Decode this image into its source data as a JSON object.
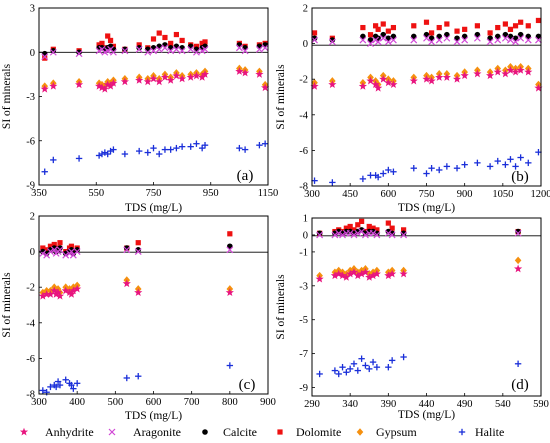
{
  "colors": {
    "Anhydrite": "#e8157f",
    "Aragonite": "#d147d6",
    "Calcite": "#000000",
    "Dolomite": "#ee1111",
    "Gypsum": "#f5900f",
    "Halite": "#1a2fd9"
  },
  "legend": [
    {
      "label": "Anhydrite",
      "marker": "star"
    },
    {
      "label": "Aragonite",
      "marker": "x"
    },
    {
      "label": "Calcite",
      "marker": "circle"
    },
    {
      "label": "Dolomite",
      "marker": "square"
    },
    {
      "label": "Gypsum",
      "marker": "diamond"
    },
    {
      "label": "Halite",
      "marker": "plus"
    }
  ],
  "chart_data": [
    {
      "type": "scatter",
      "panel_label": "(a)",
      "xlabel": "TDS (mg/L)",
      "ylabel": "SI of minerals",
      "xlim": [
        350,
        1150
      ],
      "ylim": [
        -9,
        3
      ],
      "xticks": [
        350,
        550,
        750,
        950,
        1150
      ],
      "yticks": [
        -9,
        -6,
        -3,
        0,
        3
      ],
      "x": [
        370,
        400,
        490,
        560,
        570,
        580,
        590,
        600,
        610,
        650,
        700,
        730,
        750,
        770,
        790,
        810,
        830,
        850,
        880,
        900,
        920,
        930,
        1050,
        1070,
        1120,
        1140
      ],
      "series": [
        {
          "name": "Anhydrite",
          "values": [
            -2.5,
            -2.3,
            -2.2,
            -2.3,
            -2.4,
            -2.5,
            -2.2,
            -2.3,
            -2.1,
            -2.0,
            -1.9,
            -2.0,
            -1.8,
            -2.0,
            -1.7,
            -1.9,
            -1.6,
            -1.8,
            -1.7,
            -1.6,
            -1.7,
            -1.5,
            -1.3,
            -1.4,
            -1.5,
            -2.4
          ]
        },
        {
          "name": "Aragonite",
          "values": [
            -0.3,
            0.0,
            -0.1,
            0.1,
            0.2,
            0.0,
            0.1,
            0.2,
            0.0,
            0.1,
            0.2,
            0.0,
            0.1,
            0.2,
            0.3,
            0.1,
            0.2,
            0.1,
            0.2,
            0.0,
            0.1,
            0.2,
            0.3,
            0.1,
            0.2,
            0.3
          ]
        },
        {
          "name": "Calcite",
          "values": [
            -0.1,
            0.1,
            0.0,
            0.3,
            0.3,
            0.2,
            0.3,
            0.4,
            0.2,
            0.2,
            0.3,
            0.2,
            0.3,
            0.4,
            0.5,
            0.3,
            0.4,
            0.3,
            0.4,
            0.2,
            0.3,
            0.4,
            0.5,
            0.3,
            0.4,
            0.5
          ]
        },
        {
          "name": "Dolomite",
          "values": [
            -0.4,
            0.2,
            0.1,
            0.5,
            0.6,
            0.3,
            1.1,
            0.8,
            0.4,
            0.2,
            0.5,
            0.3,
            0.9,
            1.3,
            1.0,
            0.6,
            1.2,
            0.8,
            0.5,
            0.4,
            0.6,
            0.7,
            0.6,
            0.4,
            0.5,
            0.6
          ]
        },
        {
          "name": "Gypsum",
          "values": [
            -2.3,
            -2.1,
            -2.0,
            -2.1,
            -2.2,
            -2.3,
            -2.0,
            -2.1,
            -1.9,
            -1.8,
            -1.7,
            -1.8,
            -1.6,
            -1.8,
            -1.5,
            -1.7,
            -1.4,
            -1.6,
            -1.5,
            -1.4,
            -1.5,
            -1.3,
            -1.1,
            -1.2,
            -1.3,
            -2.2
          ]
        },
        {
          "name": "Halite",
          "values": [
            -8.1,
            -7.3,
            -7.2,
            -7.0,
            -6.9,
            -6.8,
            -6.9,
            -6.7,
            -6.6,
            -6.9,
            -6.7,
            -6.8,
            -6.5,
            -6.9,
            -6.6,
            -6.6,
            -6.5,
            -6.4,
            -6.4,
            -6.2,
            -6.5,
            -6.3,
            -6.5,
            -6.6,
            -6.3,
            -6.2
          ]
        }
      ]
    },
    {
      "type": "scatter",
      "panel_label": "(b)",
      "xlabel": "TDS (mg/L)",
      "ylabel": "SI of minerals",
      "xlim": [
        300,
        1200
      ],
      "ylim": [
        -8,
        2
      ],
      "xticks": [
        300,
        450,
        600,
        750,
        900,
        1050,
        1200
      ],
      "yticks": [
        -8,
        -6,
        -4,
        -2,
        0,
        2
      ],
      "x": [
        310,
        380,
        500,
        530,
        550,
        560,
        580,
        600,
        620,
        700,
        750,
        770,
        800,
        830,
        870,
        900,
        950,
        1000,
        1030,
        1060,
        1080,
        1100,
        1120,
        1150,
        1190
      ],
      "series": [
        {
          "name": "Anhydrite",
          "values": [
            -2.4,
            -2.3,
            -2.4,
            -2.1,
            -2.3,
            -2.5,
            -2.0,
            -2.2,
            -2.3,
            -2.1,
            -2.0,
            -2.1,
            -1.9,
            -1.9,
            -2.0,
            -1.8,
            -1.7,
            -1.8,
            -1.6,
            -1.7,
            -1.5,
            -1.6,
            -1.5,
            -1.6,
            -2.5
          ]
        },
        {
          "name": "Aragonite",
          "values": [
            0.2,
            0.1,
            0.2,
            0.0,
            0.2,
            0.1,
            0.3,
            0.1,
            0.2,
            0.2,
            0.3,
            0.1,
            0.2,
            0.3,
            0.1,
            0.2,
            0.3,
            0.1,
            0.2,
            0.3,
            0.2,
            0.1,
            0.3,
            0.2,
            0.2
          ]
        },
        {
          "name": "Calcite",
          "values": [
            0.3,
            0.2,
            0.4,
            0.2,
            0.4,
            0.3,
            0.5,
            0.3,
            0.4,
            0.4,
            0.5,
            0.3,
            0.4,
            0.5,
            0.3,
            0.4,
            0.5,
            0.3,
            0.4,
            0.5,
            0.4,
            0.3,
            0.5,
            0.4,
            0.4
          ]
        },
        {
          "name": "Dolomite",
          "values": [
            0.6,
            0.3,
            0.9,
            0.5,
            1.0,
            0.8,
            1.1,
            0.7,
            0.9,
            1.0,
            1.2,
            0.6,
            0.9,
            1.1,
            0.7,
            0.8,
            1.0,
            0.6,
            0.9,
            1.1,
            0.8,
            1.0,
            1.2,
            1.0,
            1.3
          ]
        },
        {
          "name": "Gypsum",
          "values": [
            -2.2,
            -2.1,
            -2.2,
            -1.9,
            -2.1,
            -2.3,
            -1.8,
            -2.0,
            -2.1,
            -1.9,
            -1.8,
            -1.9,
            -1.7,
            -1.7,
            -1.8,
            -1.6,
            -1.5,
            -1.6,
            -1.4,
            -1.5,
            -1.3,
            -1.4,
            -1.3,
            -1.4,
            -2.3
          ]
        },
        {
          "name": "Halite",
          "values": [
            -7.7,
            -7.8,
            -7.6,
            -7.4,
            -7.4,
            -7.5,
            -7.3,
            -7.1,
            -7.2,
            -7.0,
            -7.3,
            -7.0,
            -7.1,
            -6.9,
            -7.0,
            -6.8,
            -6.7,
            -6.9,
            -6.6,
            -6.8,
            -6.5,
            -6.9,
            -6.4,
            -6.7,
            -6.1
          ]
        }
      ]
    },
    {
      "type": "scatter",
      "panel_label": "(c)",
      "xlabel": "TDS (mg/L)",
      "ylabel": "SI of minerals",
      "xlim": [
        300,
        900
      ],
      "ylim": [
        -8,
        2
      ],
      "xticks": [
        300,
        400,
        500,
        600,
        700,
        800,
        900
      ],
      "yticks": [
        -8,
        -6,
        -4,
        -2,
        0,
        2
      ],
      "x": [
        310,
        320,
        330,
        340,
        345,
        350,
        355,
        370,
        380,
        385,
        390,
        400,
        530,
        560,
        800
      ],
      "series": [
        {
          "name": "Anhydrite",
          "values": [
            -2.5,
            -2.4,
            -2.4,
            -2.2,
            -2.4,
            -2.3,
            -2.5,
            -2.2,
            -2.3,
            -2.4,
            -2.2,
            -2.1,
            -1.8,
            -2.3,
            -2.3
          ]
        },
        {
          "name": "Aragonite",
          "values": [
            -0.1,
            -0.2,
            0.0,
            0.1,
            -0.1,
            0.0,
            0.1,
            -0.2,
            -0.1,
            0.0,
            -0.2,
            0.0,
            0.1,
            0.0,
            0.1
          ]
        },
        {
          "name": "Calcite",
          "values": [
            0.0,
            -0.1,
            0.1,
            0.2,
            0.0,
            0.1,
            0.2,
            -0.1,
            0.0,
            0.1,
            -0.1,
            0.1,
            0.2,
            0.1,
            0.3
          ]
        },
        {
          "name": "Dolomite",
          "values": [
            0.2,
            0.1,
            0.3,
            0.4,
            0.1,
            0.2,
            0.5,
            0.0,
            0.2,
            0.3,
            0.0,
            0.2,
            0.2,
            0.5,
            1.0
          ]
        },
        {
          "name": "Gypsum",
          "values": [
            -2.3,
            -2.2,
            -2.2,
            -2.0,
            -2.2,
            -2.1,
            -2.3,
            -2.0,
            -2.1,
            -2.2,
            -2.0,
            -1.9,
            -1.6,
            -2.1,
            -2.1
          ]
        },
        {
          "name": "Halite",
          "values": [
            -7.8,
            -7.9,
            -7.6,
            -7.5,
            -7.6,
            -7.3,
            -7.5,
            -7.2,
            -7.4,
            -7.5,
            -7.7,
            -7.4,
            -7.1,
            -7.0,
            -6.4
          ]
        }
      ]
    },
    {
      "type": "scatter",
      "panel_label": "(d)",
      "xlabel": "TDS (mg/L)",
      "ylabel": "SI of minerals",
      "xlim": [
        290,
        590
      ],
      "ylim": [
        -9.5,
        1
      ],
      "xticks": [
        290,
        340,
        390,
        440,
        490,
        540,
        590
      ],
      "yticks": [
        -9,
        -7,
        -5,
        -3,
        -1,
        0,
        1
      ],
      "x": [
        300,
        320,
        325,
        330,
        335,
        340,
        345,
        350,
        355,
        360,
        365,
        370,
        375,
        390,
        395,
        410,
        560
      ],
      "series": [
        {
          "name": "Anhydrite",
          "values": [
            -2.6,
            -2.4,
            -2.3,
            -2.4,
            -2.5,
            -2.3,
            -2.2,
            -2.4,
            -2.3,
            -2.2,
            -2.5,
            -2.4,
            -2.3,
            -2.4,
            -2.3,
            -2.3,
            -2.0
          ]
        },
        {
          "name": "Aragonite",
          "values": [
            0.0,
            0.0,
            0.1,
            0.0,
            0.1,
            0.1,
            0.0,
            0.1,
            0.2,
            0.0,
            0.1,
            0.1,
            0.0,
            0.1,
            0.0,
            0.0,
            0.1
          ]
        },
        {
          "name": "Calcite",
          "values": [
            0.1,
            0.1,
            0.2,
            0.1,
            0.2,
            0.2,
            0.1,
            0.2,
            0.3,
            0.1,
            0.2,
            0.2,
            0.1,
            0.2,
            0.1,
            0.1,
            0.2
          ]
        },
        {
          "name": "Dolomite",
          "values": [
            0.1,
            0.2,
            0.3,
            0.2,
            0.4,
            0.5,
            0.3,
            0.6,
            0.8,
            0.2,
            0.5,
            0.4,
            0.3,
            0.7,
            0.4,
            0.3,
            0.2
          ]
        },
        {
          "name": "Gypsum",
          "values": [
            -2.4,
            -2.2,
            -2.1,
            -2.2,
            -2.3,
            -2.1,
            -2.0,
            -2.2,
            -2.1,
            -2.0,
            -2.3,
            -2.2,
            -2.1,
            -2.2,
            -2.1,
            -2.1,
            -1.5
          ]
        },
        {
          "name": "Halite",
          "values": [
            -8.2,
            -8.0,
            -8.2,
            -7.8,
            -8.1,
            -7.9,
            -7.6,
            -8.0,
            -7.3,
            -7.7,
            -7.9,
            -7.5,
            -7.8,
            -7.8,
            -7.4,
            -7.2,
            -7.6
          ]
        }
      ]
    }
  ]
}
